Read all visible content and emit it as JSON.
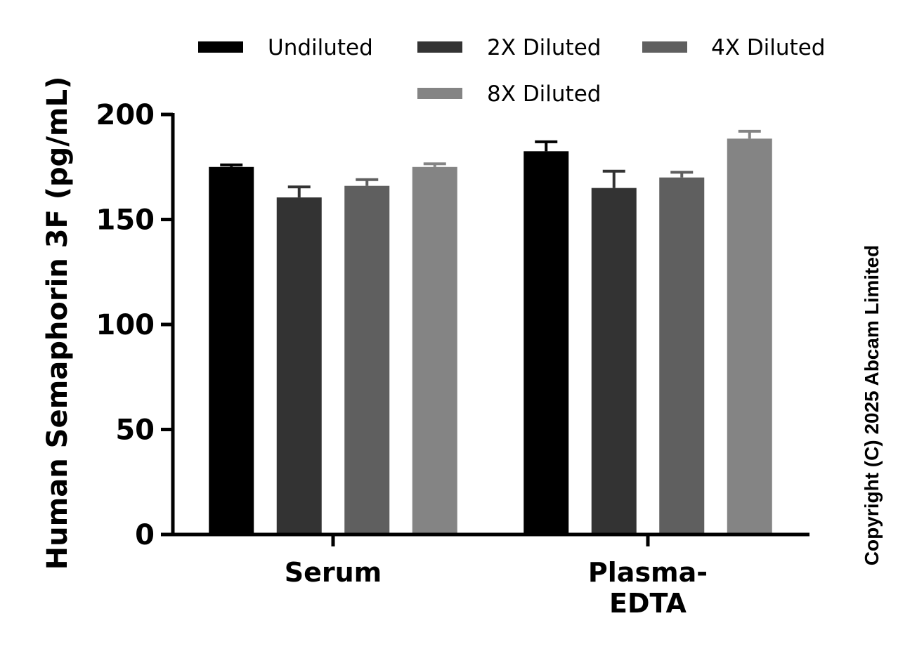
{
  "chart_data": {
    "type": "bar",
    "categories": [
      [
        "Serum"
      ],
      [
        "Plasma-",
        "EDTA"
      ]
    ],
    "series": [
      {
        "name": "Undiluted",
        "values": [
          175,
          182.5
        ],
        "errors": [
          1,
          4.5
        ],
        "color": "#000000"
      },
      {
        "name": "2X Diluted",
        "values": [
          160.5,
          165
        ],
        "errors": [
          5,
          8
        ],
        "color": "#333333"
      },
      {
        "name": "4X Diluted",
        "values": [
          166,
          170
        ],
        "errors": [
          3,
          2.5
        ],
        "color": "#5f5f5f"
      },
      {
        "name": "8X Diluted",
        "values": [
          175,
          188.5
        ],
        "errors": [
          1.5,
          3.5
        ],
        "color": "#848484"
      }
    ],
    "ylabel": "Human Semaphorin 3F (pg/mL)",
    "xlabel": "",
    "ylim": [
      0,
      200
    ],
    "yticks": [
      0,
      50,
      100,
      150,
      200
    ],
    "grid": false,
    "legend_position": "top"
  },
  "watermark": "Copyright (C) 2025 Abcam Limited"
}
